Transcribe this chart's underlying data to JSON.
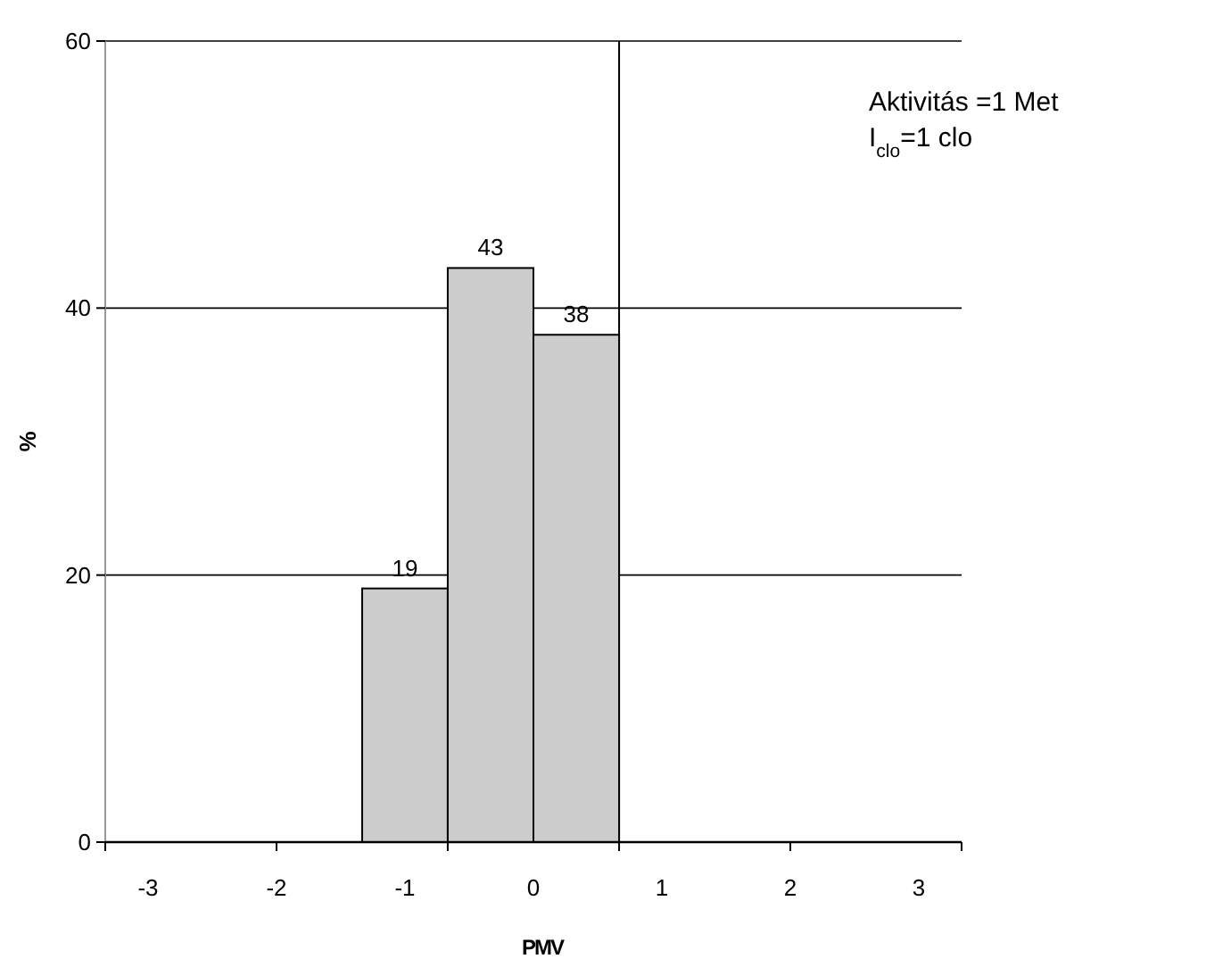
{
  "chart_data": {
    "type": "histogram",
    "xlabel": "PMV",
    "ylabel": "%",
    "bins": [
      -1.333,
      -0.667,
      0,
      0.667
    ],
    "values": [
      19,
      43,
      38
    ],
    "color": "#cccccc",
    "data_labels": true,
    "xlim": [
      -3.333,
      3.333
    ],
    "xticks": [
      {
        "value": -3.333,
        "label": null
      },
      {
        "value": -2,
        "label": null
      },
      {
        "value": -0.667,
        "label": null
      },
      {
        "value": 0.667,
        "label": null
      },
      {
        "value": 2,
        "label": null
      },
      {
        "value": 3.333,
        "label": null
      },
      -3,
      -2,
      -1,
      0,
      1,
      2,
      3
    ],
    "ylim": [
      0,
      60
    ],
    "yticks": [
      0,
      20,
      40,
      60
    ],
    "grid": "y",
    "ref_lines": [
      {
        "axis": "x",
        "value": 0.667,
        "color": "#000000"
      }
    ],
    "annotations": [
      "Aktivitás =1 Met",
      "I$_{clo}$=1 clo"
    ]
  }
}
